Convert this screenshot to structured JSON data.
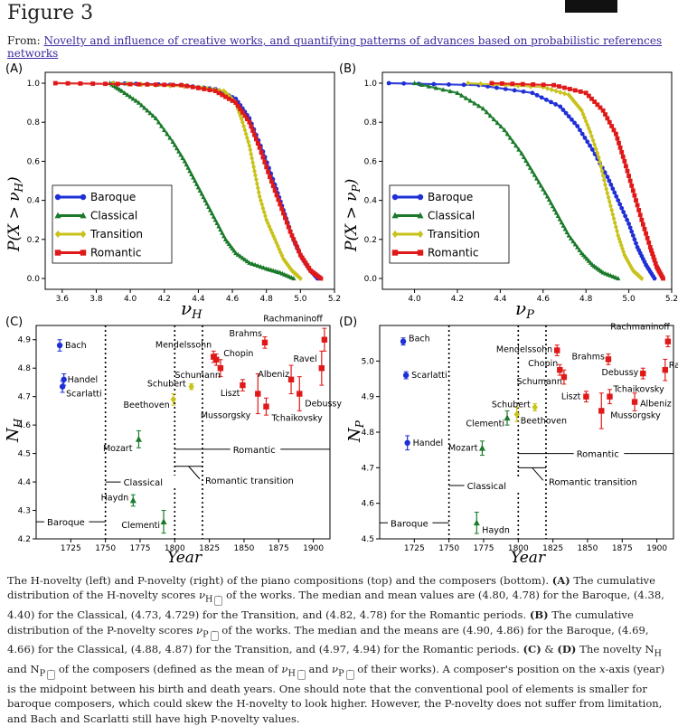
{
  "header": {
    "figure_title": "Figure 3",
    "from_prefix": "From: ",
    "from_link": "Novelty and influence of creative works, and quantifying patterns of advances based on probabilistic references networks"
  },
  "panels": {
    "A": {
      "label": "(A)",
      "xlabel": "ν",
      "xsub": "H",
      "ylabel": "P(X > ν",
      "ysub": "H",
      "ylabel_end": ")"
    },
    "B": {
      "label": "(B)",
      "xlabel": "ν",
      "xsub": "P",
      "ylabel": "P(X > ν",
      "ysub": "P",
      "ylabel_end": ")"
    },
    "C": {
      "label": "(C)",
      "xlabel": "Year",
      "ylabel": "N",
      "ysub": "H"
    },
    "D": {
      "label": "(D)",
      "xlabel": "Year",
      "ylabel": "N",
      "ysub": "P"
    }
  },
  "legend": [
    "Baroque",
    "Classical",
    "Transition",
    "Romantic"
  ],
  "colors": {
    "Baroque": "#1f2fd6",
    "Classical": "#1a7a2a",
    "Transition": "#c8c21a",
    "Romantic": "#e01818"
  },
  "period_labels": {
    "baroque": "Baroque",
    "classical": "Classical",
    "romantic": "Romantic",
    "transition": "Romantic transition"
  },
  "chart_data": [
    {
      "panel": "A",
      "type": "line",
      "xlim": [
        3.5,
        5.2
      ],
      "ylim": [
        0,
        1
      ],
      "xticks": [
        "3.6",
        "3.8",
        "4.0",
        "4.2",
        "4.4",
        "4.6",
        "4.8",
        "5.0",
        "5.2"
      ],
      "yticks": [
        "0.0",
        "0.2",
        "0.4",
        "0.6",
        "0.8",
        "1.0"
      ],
      "series": [
        {
          "name": "Baroque",
          "x": [
            3.9,
            4.3,
            4.5,
            4.62,
            4.7,
            4.78,
            4.85,
            4.9,
            4.95,
            5.0,
            5.05,
            5.1
          ],
          "y": [
            1.0,
            0.99,
            0.97,
            0.92,
            0.82,
            0.65,
            0.48,
            0.35,
            0.22,
            0.12,
            0.05,
            0.0
          ]
        },
        {
          "name": "Classical",
          "x": [
            3.88,
            3.95,
            4.05,
            4.15,
            4.25,
            4.32,
            4.38,
            4.44,
            4.5,
            4.56,
            4.62,
            4.7,
            4.8,
            4.88,
            4.96
          ],
          "y": [
            1.0,
            0.96,
            0.9,
            0.82,
            0.7,
            0.6,
            0.5,
            0.4,
            0.3,
            0.2,
            0.13,
            0.08,
            0.05,
            0.03,
            0.0
          ]
        },
        {
          "name": "Transition",
          "x": [
            3.9,
            4.4,
            4.55,
            4.62,
            4.66,
            4.7,
            4.73,
            4.76,
            4.8,
            4.85,
            4.9,
            4.95,
            5.0
          ],
          "y": [
            1.0,
            0.98,
            0.96,
            0.9,
            0.8,
            0.68,
            0.55,
            0.42,
            0.3,
            0.2,
            0.1,
            0.04,
            0.0
          ]
        },
        {
          "name": "Romantic",
          "x": [
            3.56,
            4.0,
            4.3,
            4.5,
            4.62,
            4.7,
            4.76,
            4.82,
            4.88,
            4.94,
            5.0,
            5.06,
            5.12
          ],
          "y": [
            1.0,
            0.995,
            0.99,
            0.96,
            0.9,
            0.8,
            0.67,
            0.52,
            0.38,
            0.24,
            0.12,
            0.04,
            0.0
          ]
        }
      ]
    },
    {
      "panel": "B",
      "type": "line",
      "xlim": [
        3.85,
        5.2
      ],
      "ylim": [
        0,
        1
      ],
      "xticks": [
        "4.0",
        "4.2",
        "4.4",
        "4.6",
        "4.8",
        "5.0",
        "5.2"
      ],
      "yticks": [
        "0.0",
        "0.2",
        "0.4",
        "0.6",
        "0.8",
        "1.0"
      ],
      "series": [
        {
          "name": "Baroque",
          "x": [
            3.88,
            4.3,
            4.55,
            4.68,
            4.76,
            4.83,
            4.9,
            4.95,
            5.0,
            5.04,
            5.08,
            5.12
          ],
          "y": [
            1.0,
            0.99,
            0.95,
            0.88,
            0.78,
            0.66,
            0.52,
            0.4,
            0.28,
            0.16,
            0.07,
            0.0
          ]
        },
        {
          "name": "Classical",
          "x": [
            4.0,
            4.2,
            4.32,
            4.42,
            4.5,
            4.56,
            4.62,
            4.67,
            4.72,
            4.78,
            4.83,
            4.88,
            4.95
          ],
          "y": [
            1.0,
            0.95,
            0.87,
            0.76,
            0.64,
            0.53,
            0.42,
            0.32,
            0.22,
            0.13,
            0.07,
            0.03,
            0.0
          ]
        },
        {
          "name": "Transition",
          "x": [
            4.25,
            4.6,
            4.72,
            4.78,
            4.82,
            4.86,
            4.89,
            4.92,
            4.95,
            4.98,
            5.02,
            5.06
          ],
          "y": [
            1.0,
            0.98,
            0.94,
            0.86,
            0.75,
            0.62,
            0.48,
            0.35,
            0.22,
            0.12,
            0.04,
            0.0
          ]
        },
        {
          "name": "Romantic",
          "x": [
            4.36,
            4.65,
            4.8,
            4.88,
            4.94,
            4.98,
            5.02,
            5.06,
            5.1,
            5.13,
            5.16
          ],
          "y": [
            1.0,
            0.99,
            0.95,
            0.86,
            0.74,
            0.6,
            0.45,
            0.3,
            0.16,
            0.06,
            0.0
          ]
        }
      ]
    },
    {
      "panel": "C",
      "type": "scatter",
      "xlim": [
        1700,
        1912
      ],
      "ylim": [
        4.2,
        4.95
      ],
      "xticks": [
        "1725",
        "1750",
        "1775",
        "1800",
        "1825",
        "1850",
        "1875",
        "1900"
      ],
      "yticks": [
        "4.2",
        "4.3",
        "4.4",
        "4.5",
        "4.6",
        "4.7",
        "4.8",
        "4.9"
      ],
      "period_boundaries": [
        1750,
        1800,
        1820
      ],
      "points": [
        {
          "name": "Bach",
          "x": 1717,
          "y": 4.88,
          "err": 0.02,
          "group": "Baroque"
        },
        {
          "name": "Handel",
          "x": 1720,
          "y": 4.76,
          "err": 0.02,
          "group": "Baroque"
        },
        {
          "name": "Scarlatti",
          "x": 1719,
          "y": 4.735,
          "err": 0.02,
          "group": "Baroque"
        },
        {
          "name": "Mozart",
          "x": 1774,
          "y": 4.55,
          "err": 0.03,
          "group": "Classical"
        },
        {
          "name": "Haydn",
          "x": 1770,
          "y": 4.335,
          "err": 0.02,
          "group": "Classical"
        },
        {
          "name": "Clementi",
          "x": 1792,
          "y": 4.26,
          "err": 0.04,
          "group": "Classical"
        },
        {
          "name": "Beethoven",
          "x": 1799,
          "y": 4.69,
          "err": 0.02,
          "group": "Transition"
        },
        {
          "name": "Schubert",
          "x": 1812,
          "y": 4.735,
          "err": 0.01,
          "group": "Transition"
        },
        {
          "name": "Mendelssohn",
          "x": 1828,
          "y": 4.84,
          "err": 0.02,
          "group": "Romantic"
        },
        {
          "name": "Chopin",
          "x": 1830,
          "y": 4.83,
          "err": 0.02,
          "group": "Romantic"
        },
        {
          "name": "Schumann",
          "x": 1833,
          "y": 4.8,
          "err": 0.03,
          "group": "Romantic"
        },
        {
          "name": "Liszt",
          "x": 1849,
          "y": 4.74,
          "err": 0.02,
          "group": "Romantic"
        },
        {
          "name": "Brahms",
          "x": 1865,
          "y": 4.89,
          "err": 0.02,
          "group": "Romantic"
        },
        {
          "name": "Mussorgsky",
          "x": 1860,
          "y": 4.71,
          "err": 0.07,
          "group": "Romantic"
        },
        {
          "name": "Tchaikovsky",
          "x": 1866,
          "y": 4.665,
          "err": 0.03,
          "group": "Romantic"
        },
        {
          "name": "Albeniz",
          "x": 1884,
          "y": 4.76,
          "err": 0.05,
          "group": "Romantic"
        },
        {
          "name": "Debussy",
          "x": 1890,
          "y": 4.71,
          "err": 0.06,
          "group": "Romantic"
        },
        {
          "name": "Ravel",
          "x": 1906,
          "y": 4.8,
          "err": 0.06,
          "group": "Romantic"
        },
        {
          "name": "Rachmaninoff",
          "x": 1908,
          "y": 4.9,
          "err": 0.04,
          "group": "Romantic"
        }
      ]
    },
    {
      "panel": "D",
      "type": "scatter",
      "xlim": [
        1700,
        1912
      ],
      "ylim": [
        4.5,
        5.1
      ],
      "xticks": [
        "1725",
        "1750",
        "1775",
        "1800",
        "1825",
        "1850",
        "1875",
        "1900"
      ],
      "yticks": [
        "4.5",
        "4.6",
        "4.7",
        "4.8",
        "4.9",
        "5.0"
      ],
      "period_boundaries": [
        1750,
        1800,
        1820
      ],
      "points": [
        {
          "name": "Bach",
          "x": 1717,
          "y": 5.055,
          "err": 0.01,
          "group": "Baroque"
        },
        {
          "name": "Scarlatti",
          "x": 1719,
          "y": 4.96,
          "err": 0.01,
          "group": "Baroque"
        },
        {
          "name": "Handel",
          "x": 1720,
          "y": 4.77,
          "err": 0.02,
          "group": "Baroque"
        },
        {
          "name": "Clementi",
          "x": 1792,
          "y": 4.84,
          "err": 0.02,
          "group": "Classical"
        },
        {
          "name": "Mozart",
          "x": 1774,
          "y": 4.755,
          "err": 0.02,
          "group": "Classical"
        },
        {
          "name": "Haydn",
          "x": 1770,
          "y": 4.545,
          "err": 0.03,
          "group": "Classical"
        },
        {
          "name": "Beethoven",
          "x": 1799,
          "y": 4.85,
          "err": 0.02,
          "group": "Transition"
        },
        {
          "name": "Schubert",
          "x": 1812,
          "y": 4.87,
          "err": 0.01,
          "group": "Transition"
        },
        {
          "name": "Mendelssohn",
          "x": 1828,
          "y": 5.03,
          "err": 0.015,
          "group": "Romantic"
        },
        {
          "name": "Chopin",
          "x": 1830,
          "y": 4.975,
          "err": 0.015,
          "group": "Romantic"
        },
        {
          "name": "Schumann",
          "x": 1833,
          "y": 4.955,
          "err": 0.02,
          "group": "Romantic"
        },
        {
          "name": "Brahms",
          "x": 1865,
          "y": 5.005,
          "err": 0.015,
          "group": "Romantic"
        },
        {
          "name": "Liszt",
          "x": 1849,
          "y": 4.9,
          "err": 0.015,
          "group": "Romantic"
        },
        {
          "name": "Tchaikovsky",
          "x": 1866,
          "y": 4.9,
          "err": 0.02,
          "group": "Romantic"
        },
        {
          "name": "Mussorgsky",
          "x": 1860,
          "y": 4.86,
          "err": 0.05,
          "group": "Romantic"
        },
        {
          "name": "Albeniz",
          "x": 1884,
          "y": 4.885,
          "err": 0.025,
          "group": "Romantic"
        },
        {
          "name": "Debussy",
          "x": 1890,
          "y": 4.965,
          "err": 0.015,
          "group": "Romantic"
        },
        {
          "name": "Ravel",
          "x": 1906,
          "y": 4.975,
          "err": 0.03,
          "group": "Romantic"
        },
        {
          "name": "Rachmaninoff",
          "x": 1908,
          "y": 5.055,
          "err": 0.015,
          "group": "Romantic"
        }
      ]
    }
  ],
  "caption": {
    "s1": "The H-novelty (left) and P-novelty (right) of the piano compositions (top) and the composers (bottom). ",
    "s2": "(A)",
    "s3": " The cumulative distribution of the H-novelty scores ",
    "s4": " of the works. The median and mean values are ",
    "v1": "(4.80, 4.78)",
    "s5": " for the Baroque, ",
    "v2": "(4.38, 4.40)",
    "s6": " for the Classical, ",
    "v3": "(4.73, 4.729)",
    "s7": " for the Transition, and ",
    "v4": "(4.82, 4.78)",
    "s8": " for the Romantic periods. ",
    "s9": "(B)",
    "s10": " The cumulative distribution of the P-novelty scores ",
    "s11": " of the works. The median and the means are ",
    "v5": "(4.90, 4.86)",
    "s12": " for the Baroque, ",
    "v6": "(4.69, 4.66)",
    "s13": " for the Classical, ",
    "v7": "(4.88, 4.87)",
    "s14": " for the Transition, and ",
    "v8": "(4.97, 4.94)",
    "s15": " for the Romantic periods. ",
    "s16": "(C)",
    "s17": " & ",
    "s18": "(D)",
    "s19": " The novelty N",
    "sub_h": "H",
    "s20": " and N",
    "sub_p": "P",
    "s21": " of the composers (defined as the mean of ",
    "s22": " and ",
    "s23": " of their works). A composer's position on the ",
    "s24": "x",
    "s25": "-axis (year) is the midpoint between his birth and death years. One should note that the conventional pool of elements is smaller for baroque composers, which could skew the H-novelty to look higher. However, the P-novelty does not suffer from limitation, and Bach and Scarlatti still have high P-novelty values.",
    "nu": "ν"
  }
}
